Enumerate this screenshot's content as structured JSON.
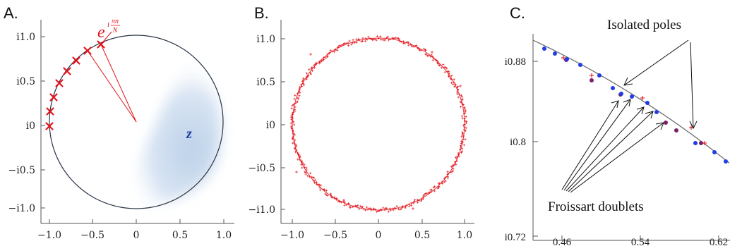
{
  "panels": [
    {
      "letter": "A.",
      "x_ticks": [
        "−1.0",
        "−0.5",
        "0",
        "0.5",
        "1.0"
      ],
      "y_ticks": [
        "i1.0",
        "i0.5",
        "i0",
        "−i0.5",
        "−i1.0"
      ],
      "formula_base": "e",
      "formula_exp_i": "i",
      "formula_num": "πn",
      "formula_den": "N",
      "z_label": "z"
    },
    {
      "letter": "B.",
      "x_ticks": [
        "−1.0",
        "−0.5",
        "0",
        "0.5",
        "1.0"
      ],
      "y_ticks": [
        "i1.0",
        "i0.5",
        "i0",
        "−i0.5",
        "−i1.0"
      ]
    },
    {
      "letter": "C.",
      "x_ticks": [
        "0.46",
        "0.54",
        "0.62"
      ],
      "y_ticks": [
        "i0.88",
        "i0.8",
        "i0.72"
      ],
      "annotation_top": "Isolated poles",
      "annotation_bottom": "Froissart doublets"
    }
  ],
  "colors": {
    "axis": "#555555",
    "circle": "#2b3446",
    "marker": "#e3141b",
    "blue_point": "#1f3ce6",
    "purple_point": "#7a1f6a",
    "shade": "#bcd1ea"
  }
}
